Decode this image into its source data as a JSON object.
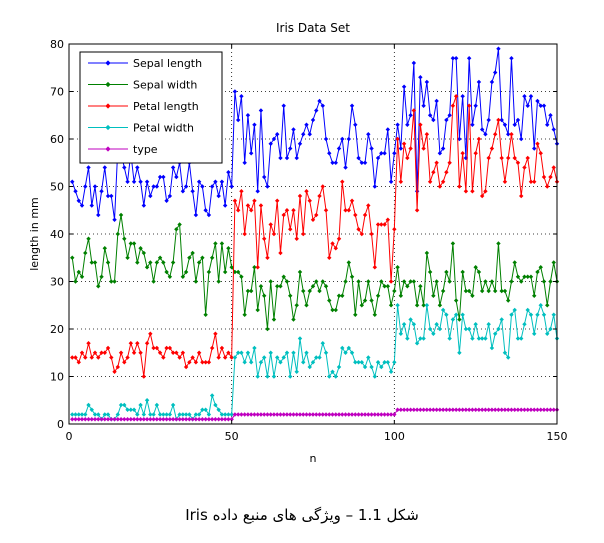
{
  "chart_data": {
    "type": "line",
    "title": "Iris Data Set",
    "xlabel": "n",
    "ylabel": "length in mm",
    "xlim": [
      0,
      150
    ],
    "ylim": [
      0,
      80
    ],
    "xticks": [
      0,
      50,
      100,
      150
    ],
    "yticks": [
      0,
      10,
      20,
      30,
      40,
      50,
      60,
      70,
      80
    ],
    "grid": true,
    "legend_position": "top-left",
    "series": [
      {
        "name": "Sepal length",
        "color": "#0000ff",
        "values": [
          51,
          49,
          47,
          46,
          50,
          54,
          46,
          50,
          44,
          49,
          54,
          48,
          48,
          43,
          58,
          57,
          54,
          51,
          57,
          51,
          54,
          51,
          46,
          51,
          48,
          50,
          50,
          52,
          52,
          47,
          48,
          54,
          52,
          55,
          49,
          50,
          55,
          49,
          44,
          51,
          50,
          45,
          44,
          50,
          51,
          48,
          51,
          46,
          53,
          50,
          70,
          64,
          69,
          55,
          65,
          57,
          63,
          49,
          66,
          52,
          50,
          59,
          60,
          61,
          56,
          67,
          56,
          58,
          62,
          56,
          59,
          61,
          63,
          61,
          64,
          66,
          68,
          67,
          60,
          57,
          55,
          55,
          58,
          60,
          54,
          60,
          67,
          63,
          56,
          55,
          55,
          61,
          58,
          50,
          56,
          57,
          57,
          62,
          51,
          57,
          63,
          58,
          71,
          63,
          65,
          76,
          49,
          73,
          67,
          72,
          65,
          64,
          68,
          57,
          58,
          64,
          65,
          77,
          77,
          60,
          69,
          56,
          77,
          63,
          67,
          72,
          62,
          61,
          64,
          72,
          74,
          79,
          64,
          63,
          61,
          77,
          63,
          64,
          60,
          69,
          67,
          69,
          58,
          68,
          67,
          67,
          63,
          65,
          62,
          59
        ]
      },
      {
        "name": "Sepal width",
        "color": "#008000",
        "values": [
          35,
          30,
          32,
          31,
          36,
          39,
          34,
          34,
          29,
          31,
          37,
          34,
          30,
          30,
          40,
          44,
          39,
          35,
          38,
          38,
          34,
          37,
          36,
          33,
          34,
          30,
          34,
          35,
          34,
          32,
          31,
          34,
          41,
          42,
          31,
          32,
          35,
          36,
          30,
          34,
          35,
          23,
          32,
          35,
          38,
          30,
          38,
          32,
          37,
          33,
          32,
          32,
          31,
          23,
          28,
          28,
          33,
          24,
          29,
          27,
          20,
          30,
          22,
          29,
          29,
          31,
          30,
          27,
          22,
          25,
          32,
          28,
          25,
          28,
          29,
          30,
          28,
          30,
          29,
          26,
          24,
          24,
          27,
          27,
          30,
          34,
          31,
          23,
          30,
          25,
          26,
          30,
          26,
          23,
          27,
          30,
          29,
          29,
          25,
          28,
          33,
          27,
          30,
          29,
          30,
          30,
          25,
          29,
          25,
          36,
          32,
          27,
          30,
          25,
          28,
          32,
          30,
          38,
          26,
          22,
          32,
          28,
          28,
          27,
          33,
          32,
          28,
          30,
          28,
          30,
          28,
          38,
          28,
          28,
          26,
          30,
          34,
          31,
          30,
          31,
          31,
          31,
          27,
          32,
          33,
          30,
          25,
          30,
          34,
          30
        ]
      },
      {
        "name": "Petal length",
        "color": "#ff0000",
        "values": [
          14,
          14,
          13,
          15,
          14,
          17,
          14,
          15,
          14,
          15,
          15,
          16,
          14,
          11,
          12,
          15,
          13,
          14,
          17,
          15,
          17,
          15,
          10,
          17,
          19,
          16,
          16,
          15,
          14,
          16,
          16,
          15,
          15,
          14,
          15,
          12,
          13,
          14,
          13,
          15,
          13,
          13,
          13,
          16,
          19,
          14,
          16,
          14,
          15,
          14,
          47,
          45,
          49,
          40,
          46,
          45,
          47,
          33,
          46,
          39,
          35,
          42,
          40,
          47,
          36,
          44,
          45,
          41,
          45,
          39,
          48,
          40,
          49,
          47,
          43,
          44,
          48,
          50,
          45,
          35,
          38,
          37,
          39,
          51,
          45,
          45,
          47,
          44,
          41,
          40,
          44,
          46,
          40,
          33,
          42,
          42,
          42,
          43,
          30,
          41,
          60,
          51,
          59,
          56,
          58,
          66,
          45,
          63,
          58,
          61,
          51,
          53,
          55,
          50,
          51,
          53,
          55,
          67,
          69,
          50,
          57,
          49,
          67,
          49,
          57,
          60,
          48,
          49,
          56,
          58,
          61,
          64,
          56,
          51,
          56,
          61,
          56,
          55,
          48,
          54,
          56,
          51,
          51,
          59,
          57,
          52,
          50,
          52,
          54,
          51
        ]
      },
      {
        "name": "Petal width",
        "color": "#00bfbf",
        "values": [
          2,
          2,
          2,
          2,
          2,
          4,
          3,
          2,
          2,
          1,
          2,
          2,
          1,
          1,
          2,
          4,
          4,
          3,
          3,
          3,
          2,
          4,
          2,
          5,
          2,
          2,
          4,
          2,
          2,
          2,
          2,
          4,
          1,
          2,
          2,
          2,
          2,
          1,
          2,
          2,
          3,
          3,
          2,
          6,
          4,
          3,
          2,
          2,
          2,
          2,
          14,
          15,
          15,
          13,
          15,
          13,
          16,
          10,
          13,
          14,
          10,
          15,
          10,
          14,
          13,
          14,
          15,
          10,
          15,
          11,
          18,
          13,
          15,
          12,
          13,
          14,
          14,
          17,
          15,
          10,
          11,
          10,
          12,
          16,
          15,
          16,
          15,
          13,
          13,
          13,
          12,
          14,
          12,
          10,
          13,
          12,
          13,
          13,
          11,
          13,
          25,
          19,
          21,
          18,
          22,
          21,
          17,
          18,
          18,
          25,
          20,
          19,
          21,
          20,
          24,
          23,
          18,
          22,
          23,
          15,
          23,
          20,
          20,
          18,
          21,
          18,
          18,
          18,
          21,
          16,
          19,
          20,
          22,
          15,
          14,
          23,
          24,
          18,
          18,
          21,
          24,
          23,
          19,
          23,
          25,
          23,
          19,
          20,
          23,
          18
        ]
      },
      {
        "name": "type",
        "color": "#bf00bf",
        "values": [
          1,
          1,
          1,
          1,
          1,
          1,
          1,
          1,
          1,
          1,
          1,
          1,
          1,
          1,
          1,
          1,
          1,
          1,
          1,
          1,
          1,
          1,
          1,
          1,
          1,
          1,
          1,
          1,
          1,
          1,
          1,
          1,
          1,
          1,
          1,
          1,
          1,
          1,
          1,
          1,
          1,
          1,
          1,
          1,
          1,
          1,
          1,
          1,
          1,
          1,
          2,
          2,
          2,
          2,
          2,
          2,
          2,
          2,
          2,
          2,
          2,
          2,
          2,
          2,
          2,
          2,
          2,
          2,
          2,
          2,
          2,
          2,
          2,
          2,
          2,
          2,
          2,
          2,
          2,
          2,
          2,
          2,
          2,
          2,
          2,
          2,
          2,
          2,
          2,
          2,
          2,
          2,
          2,
          2,
          2,
          2,
          2,
          2,
          2,
          2,
          3,
          3,
          3,
          3,
          3,
          3,
          3,
          3,
          3,
          3,
          3,
          3,
          3,
          3,
          3,
          3,
          3,
          3,
          3,
          3,
          3,
          3,
          3,
          3,
          3,
          3,
          3,
          3,
          3,
          3,
          3,
          3,
          3,
          3,
          3,
          3,
          3,
          3,
          3,
          3,
          3,
          3,
          3,
          3,
          3,
          3,
          3,
          3,
          3,
          3
        ]
      }
    ]
  },
  "caption": "شکل 1.1 – ویژگی های منبع داده Iris"
}
